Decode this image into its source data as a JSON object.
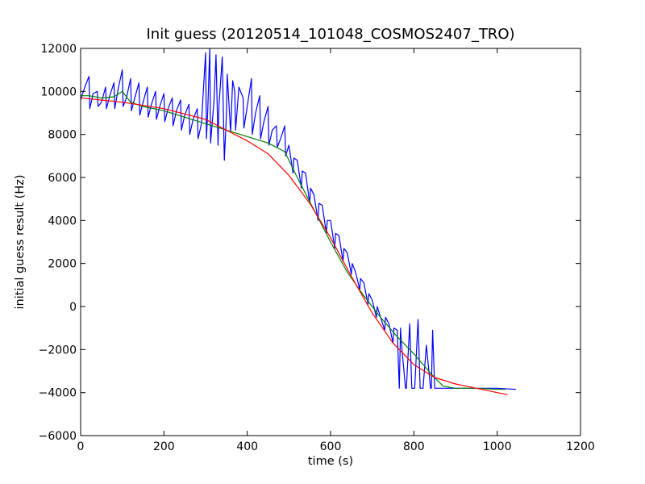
{
  "chart_data": {
    "type": "line",
    "title": "Init guess (20120514_101048_COSMOS2407_TRO)",
    "xlabel": "time (s)",
    "ylabel": "initial guess result (Hz)",
    "xlim": [
      0,
      1200
    ],
    "ylim": [
      -6000,
      12000
    ],
    "xticks": [
      0,
      200,
      400,
      600,
      800,
      1000,
      1200
    ],
    "yticks": [
      -6000,
      -4000,
      -2000,
      0,
      2000,
      4000,
      6000,
      8000,
      10000,
      12000
    ],
    "grid": false,
    "series": [
      {
        "color": "#0000ff",
        "x": [
          0,
          10,
          20,
          22,
          30,
          40,
          42,
          50,
          60,
          62,
          70,
          80,
          82,
          90,
          100,
          102,
          110,
          120,
          122,
          130,
          140,
          142,
          150,
          160,
          162,
          170,
          180,
          182,
          190,
          200,
          202,
          210,
          220,
          222,
          230,
          240,
          242,
          250,
          260,
          262,
          270,
          280,
          282,
          290,
          300,
          302,
          305,
          310,
          312,
          320,
          325,
          330,
          332,
          340,
          345,
          350,
          352,
          360,
          365,
          370,
          372,
          380,
          390,
          392,
          400,
          410,
          412,
          420,
          430,
          432,
          440,
          450,
          452,
          460,
          470,
          472,
          480,
          490,
          492,
          500,
          510,
          512,
          520,
          530,
          532,
          540,
          550,
          552,
          560,
          570,
          572,
          580,
          590,
          592,
          600,
          610,
          612,
          620,
          630,
          632,
          640,
          650,
          652,
          660,
          670,
          672,
          680,
          690,
          692,
          700,
          710,
          712,
          720,
          730,
          732,
          740,
          750,
          752,
          760,
          765,
          768,
          770,
          780,
          782,
          790,
          795,
          800,
          802,
          810,
          815,
          820,
          822,
          830,
          840,
          842,
          845,
          850,
          860,
          900,
          1000,
          1045
        ],
        "y": [
          9600,
          10200,
          10700,
          9200,
          9900,
          10000,
          9300,
          9500,
          10200,
          9200,
          9800,
          10400,
          9200,
          10100,
          11000,
          9300,
          9700,
          10600,
          9100,
          9700,
          10400,
          8900,
          9500,
          10200,
          8800,
          9400,
          10000,
          8700,
          9300,
          9900,
          8600,
          9200,
          9700,
          8400,
          9100,
          9600,
          8200,
          8900,
          9400,
          8000,
          8700,
          9200,
          7800,
          8500,
          11800,
          7800,
          9000,
          12000,
          7600,
          9500,
          11700,
          7500,
          9300,
          11600,
          6800,
          8900,
          10800,
          8100,
          10500,
          10000,
          8200,
          10200,
          9700,
          8300,
          9300,
          10600,
          8000,
          9000,
          9800,
          7800,
          8600,
          9300,
          7500,
          8200,
          8400,
          7400,
          7800,
          8400,
          7000,
          7500,
          6200,
          6900,
          6800,
          5500,
          6300,
          6200,
          4800,
          5500,
          5200,
          4000,
          4800,
          4700,
          3400,
          4000,
          4000,
          2700,
          3400,
          3300,
          2100,
          2700,
          2500,
          1500,
          2000,
          1600,
          800,
          1300,
          1100,
          100,
          600,
          300,
          -500,
          0,
          -500,
          -1100,
          -500,
          -800,
          -1700,
          -1000,
          -1100,
          -3800,
          -1000,
          -1700,
          -3800,
          -3800,
          -800,
          -3800,
          -3800,
          -3800,
          -600,
          -3800,
          -3800,
          -3800,
          -1800,
          -3800,
          -3800,
          -1100,
          -3800,
          -3800,
          -3800,
          -3800,
          -3850
        ]
      },
      {
        "color": "#008000",
        "x": [
          0,
          20,
          50,
          80,
          100,
          120,
          150,
          200,
          250,
          300,
          350,
          400,
          450,
          490,
          520,
          560,
          600,
          640,
          680,
          720,
          760,
          800,
          840,
          870,
          900,
          950,
          1000,
          1020
        ],
        "y": [
          9800,
          9800,
          9700,
          9750,
          10000,
          9500,
          9300,
          9100,
          8800,
          8500,
          8200,
          7900,
          7600,
          7200,
          6000,
          4500,
          3000,
          1600,
          500,
          -500,
          -1400,
          -2200,
          -3100,
          -3700,
          -3800,
          -3800,
          -3850,
          -3850
        ]
      },
      {
        "color": "#ff0000",
        "x": [
          0,
          100,
          200,
          300,
          350,
          400,
          450,
          500,
          550,
          600,
          650,
          700,
          750,
          800,
          850,
          900,
          950,
          1000,
          1025
        ],
        "y": [
          9700,
          9500,
          9200,
          8700,
          8200,
          7700,
          7100,
          6100,
          4800,
          3200,
          1400,
          -300,
          -1700,
          -2700,
          -3300,
          -3600,
          -3800,
          -4000,
          -4100
        ]
      }
    ]
  }
}
